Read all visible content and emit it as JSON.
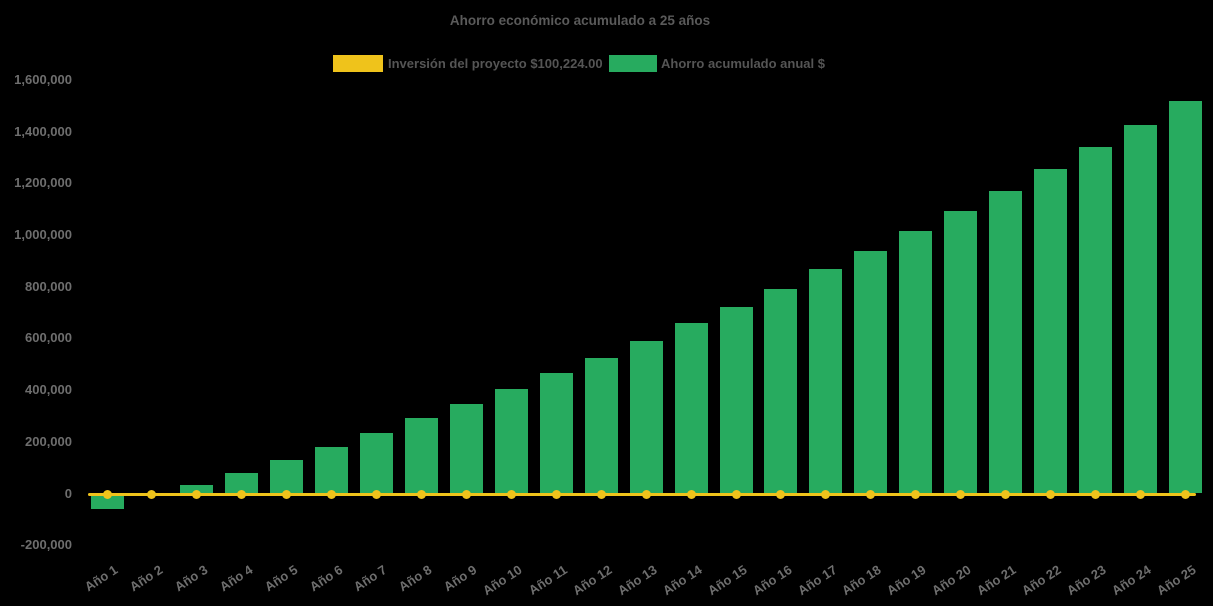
{
  "title": "Ahorro económico acumulado a 25 años",
  "legend": {
    "position": "top",
    "items": [
      {
        "label": "Inversión del proyecto $100,224.00",
        "color": "#EFC31B"
      },
      {
        "label": "Ahorro acumulado anual $",
        "color": "#27AB5F"
      }
    ]
  },
  "chart_data": {
    "type": "bar",
    "title": "Ahorro económico acumulado a 25 años",
    "xlabel": "",
    "ylabel": "",
    "background": "#000000",
    "grid": false,
    "legend_position": "top",
    "ylim": [
      -200000,
      1600000
    ],
    "ytick_interval": 200000,
    "yticks": [
      {
        "value": 1600000,
        "label": "1,600,000"
      },
      {
        "value": 1400000,
        "label": "1,400,000"
      },
      {
        "value": 1200000,
        "label": "1,200,000"
      },
      {
        "value": 1000000,
        "label": "1,000,000"
      },
      {
        "value": 800000,
        "label": "800,000"
      },
      {
        "value": 600000,
        "label": "600,000"
      },
      {
        "value": 400000,
        "label": "400,000"
      },
      {
        "value": 200000,
        "label": "200,000"
      },
      {
        "value": 0,
        "label": "0"
      },
      {
        "value": -200000,
        "label": "-200,000"
      }
    ],
    "categories": [
      "Año 1",
      "Año 2",
      "Año 3",
      "Año 4",
      "Año 5",
      "Año 6",
      "Año 7",
      "Año 8",
      "Año 9",
      "Año 10",
      "Año 11",
      "Año 12",
      "Año 13",
      "Año 14",
      "Año 15",
      "Año 16",
      "Año 17",
      "Año 18",
      "Año 19",
      "Año 20",
      "Año 21",
      "Año 22",
      "Año 23",
      "Año 24",
      "Año 25"
    ],
    "series": [
      {
        "name": "Inversión del proyecto $100,224.00",
        "type": "line",
        "color": "#EFC31B",
        "marker": "circle",
        "rendered_level": 0,
        "values": [
          0,
          0,
          0,
          0,
          0,
          0,
          0,
          0,
          0,
          0,
          0,
          0,
          0,
          0,
          0,
          0,
          0,
          0,
          0,
          0,
          0,
          0,
          0,
          0,
          0
        ]
      },
      {
        "name": "Ahorro acumulado anual $",
        "type": "bar",
        "color": "#27AB5F",
        "values": [
          -60000,
          -12000,
          31000,
          77000,
          128000,
          178000,
          232000,
          290000,
          344000,
          402000,
          464000,
          522000,
          588000,
          658000,
          720000,
          789000,
          867000,
          937000,
          1014000,
          1091000,
          1169000,
          1254000,
          1339000,
          1424000,
          1517000
        ]
      }
    ]
  }
}
